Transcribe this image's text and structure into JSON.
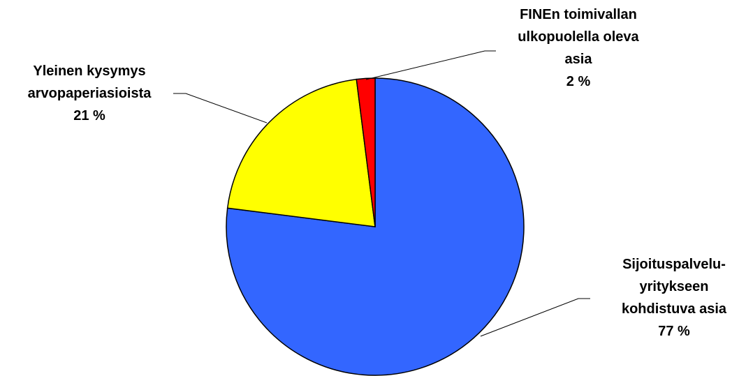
{
  "chart_data": {
    "type": "pie",
    "start_angle_deg": 0,
    "direction": "clockwise",
    "slices": [
      {
        "label_lines": [
          "Sijoituspalvelu-",
          "yritykseen",
          "kohdistuva asia"
        ],
        "value": 77,
        "value_label": "77 %",
        "color": "#3366FF"
      },
      {
        "label_lines": [
          "Yleinen kysymys",
          "arvopaperiasioista"
        ],
        "value": 21,
        "value_label": "21 %",
        "color": "#FFFF00"
      },
      {
        "label_lines": [
          "FINEn toimivallan",
          "ulkopuolella oleva",
          "asia"
        ],
        "value": 2,
        "value_label": "2 %",
        "color": "#FF0000"
      }
    ]
  }
}
